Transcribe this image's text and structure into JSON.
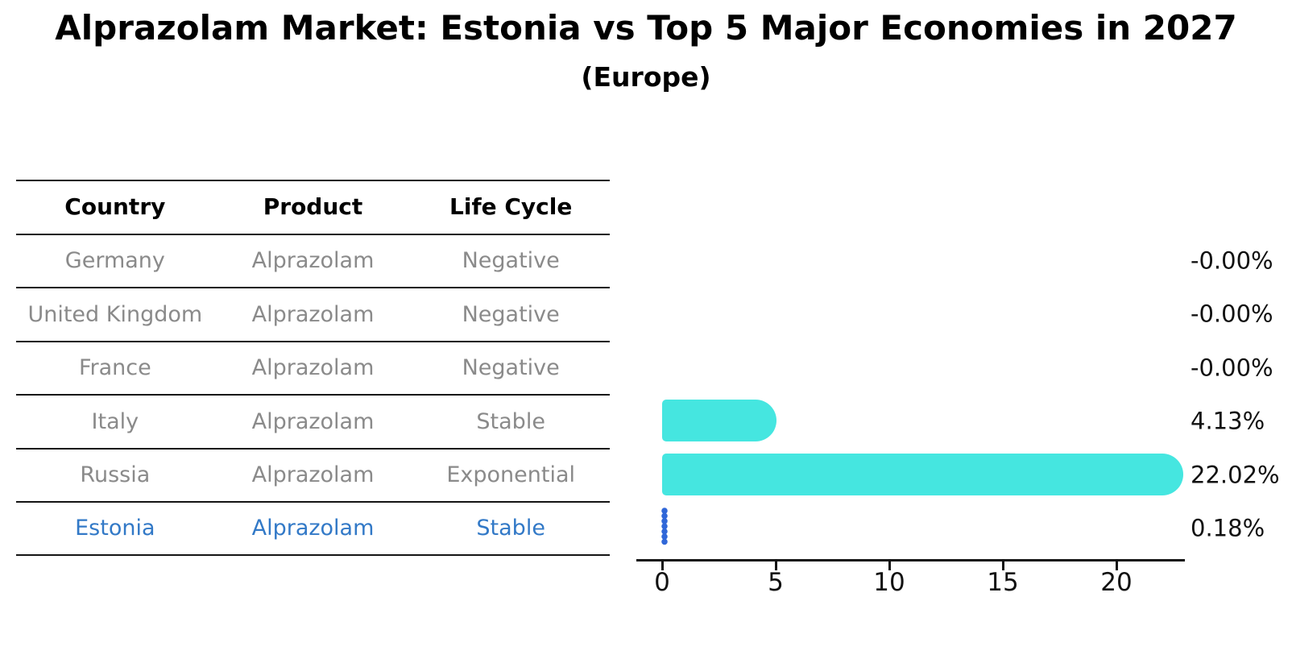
{
  "header": {
    "title": "Alprazolam Market: Estonia vs Top 5 Major Economies in 2027",
    "subtitle": "(Europe)"
  },
  "table": {
    "headers": [
      "Country",
      "Product",
      "Life Cycle"
    ],
    "rows": [
      {
        "country": "Germany",
        "product": "Alprazolam",
        "life_cycle": "Negative",
        "highlighted": false
      },
      {
        "country": "United Kingdom",
        "product": "Alprazolam",
        "life_cycle": "Negative",
        "highlighted": false
      },
      {
        "country": "France",
        "product": "Alprazolam",
        "life_cycle": "Negative",
        "highlighted": false
      },
      {
        "country": "Italy",
        "product": "Alprazolam",
        "life_cycle": "Stable",
        "highlighted": false
      },
      {
        "country": "Russia",
        "product": "Alprazolam",
        "life_cycle": "Exponential",
        "highlighted": false
      },
      {
        "country": "Estonia",
        "product": "Alprazolam",
        "life_cycle": "Stable",
        "highlighted": true
      }
    ]
  },
  "chart_data": {
    "type": "bar",
    "orientation": "horizontal",
    "title": "Alprazolam Market: Estonia vs Top 5 Major Economies in 2027",
    "subtitle": "(Europe)",
    "categories": [
      "Germany",
      "United Kingdom",
      "France",
      "Italy",
      "Russia",
      "Estonia"
    ],
    "values": [
      -0.0,
      -0.0,
      -0.0,
      4.13,
      22.02,
      0.18
    ],
    "value_labels": [
      "-0.00%",
      "-0.00%",
      "-0.00%",
      "4.13%",
      "22.02%",
      "0.18%"
    ],
    "x_ticks": [
      "0",
      "5",
      "10",
      "15",
      "20"
    ],
    "xlim": [
      -1,
      23
    ],
    "xlabel": "",
    "ylabel": "",
    "grid": false,
    "legend": "none",
    "bar_color": "#45E6E0",
    "highlight_category": "Estonia",
    "highlight_bar_color": "#3067D8",
    "highlight_text_color": "#3279C7",
    "axis_color": "#141414",
    "label_color": "#111111",
    "table_text_color": "#8A8A8A"
  }
}
